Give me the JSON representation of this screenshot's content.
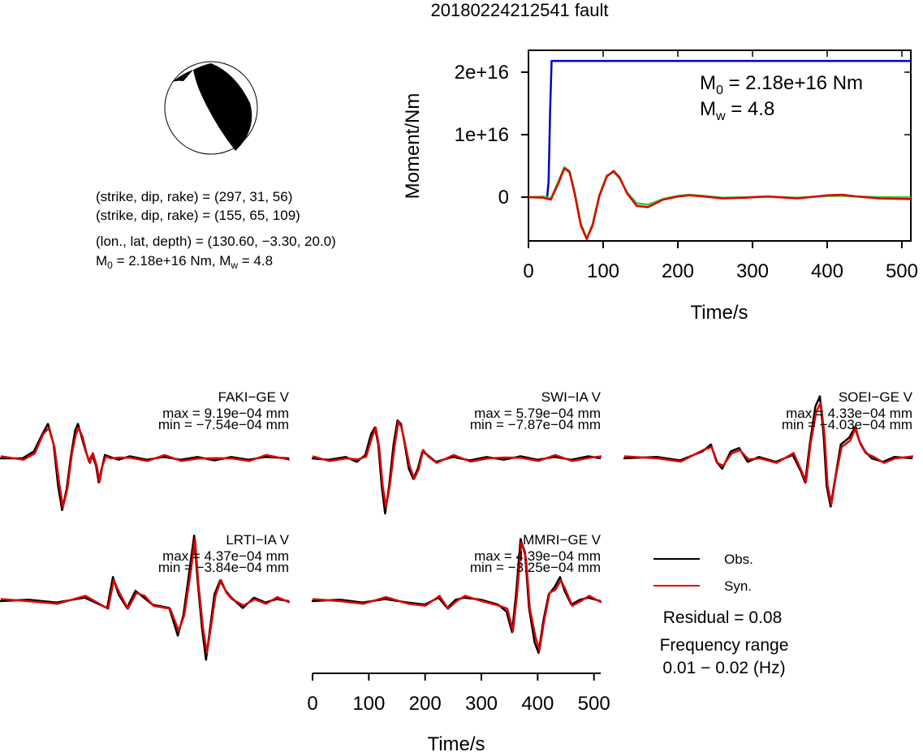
{
  "title": "20180224212541 fault",
  "mechanism": {
    "np1": "(strike, dip, rake) = (297, 31, 56)",
    "np2": "(strike, dip, rake) = (155, 65, 109)",
    "location": "(lon., lat, depth) = (130.60, −3.30, 20.0)",
    "moment_text_prefix": "M",
    "moment_text_sub": "0",
    "moment_text_rest": " = 2.18e+16 Nm, M",
    "moment_text_sub2": "w",
    "moment_text_end": " = 4.8"
  },
  "stf_annot": {
    "m0_label": "M",
    "m0_sub": "0",
    "m0_value": " = 2.18e+16 Nm",
    "mw_label": "M",
    "mw_sub": "w",
    "mw_value": " = 4.8"
  },
  "legend": {
    "obs": "Obs.",
    "syn": "Syn."
  },
  "residual": "Residual = 0.08",
  "freq_title": "Frequency range",
  "freq_value": "0.01 − 0.02 (Hz)",
  "colors": {
    "obs": "#000000",
    "syn": "#e00000",
    "blue": "#0000cc",
    "green": "#33cc33"
  },
  "chart_data": [
    {
      "type": "line",
      "name": "moment-rate-function",
      "xlabel": "Time/s",
      "ylabel": "Moment/Nm",
      "xlim": [
        0,
        512
      ],
      "ylim": [
        -7000000000000000.0,
        2.35e+16
      ],
      "xticks": [
        0,
        100,
        200,
        300,
        400,
        500
      ],
      "yticks": [
        0,
        1e+16,
        2e+16
      ],
      "ytick_labels": [
        "0",
        "1e+16",
        "2e+16"
      ],
      "series": [
        {
          "color": "#0000cc",
          "x": [
            0,
            25,
            27,
            29,
            31,
            512
          ],
          "y": [
            0,
            0,
            2500000000000000.0,
            1.4e+16,
            2.18e+16,
            2.18e+16
          ]
        },
        {
          "color": "#33cc33",
          "x": [
            0,
            20,
            30,
            40,
            48,
            55,
            62,
            70,
            78,
            86,
            95,
            105,
            114,
            122,
            132,
            145,
            160,
            180,
            200,
            215,
            235,
            260,
            290,
            320,
            360,
            400,
            420,
            440,
            470,
            512
          ],
          "y": [
            0,
            100000000000000.0,
            -200000000000000.0,
            2500000000000000.0,
            4800000000000000.0,
            4200000000000000.0,
            800000000000000.0,
            -4200000000000000.0,
            -6600000000000000.0,
            -4200000000000000.0,
            400000000000000.0,
            3500000000000000.0,
            4000000000000000.0,
            3000000000000000.0,
            800000000000000.0,
            -1000000000000000.0,
            -1200000000000000.0,
            -300000000000000.0,
            200000000000000.0,
            400000000000000.0,
            200000000000000.0,
            -100000000000000.0,
            0,
            100000000000000.0,
            -100000000000000.0,
            200000000000000.0,
            200000000000000.0,
            100000000000000.0,
            0,
            0
          ]
        },
        {
          "color": "#e00000",
          "x": [
            0,
            20,
            30,
            40,
            48,
            55,
            62,
            70,
            78,
            86,
            95,
            105,
            114,
            122,
            132,
            145,
            160,
            180,
            200,
            215,
            235,
            260,
            290,
            320,
            360,
            400,
            420,
            440,
            470,
            512
          ],
          "y": [
            0,
            -100000000000000.0,
            -400000000000000.0,
            2200000000000000.0,
            4600000000000000.0,
            4000000000000000.0,
            500000000000000.0,
            -4500000000000000.0,
            -6700000000000000.0,
            -4500000000000000.0,
            200000000000000.0,
            3300000000000000.0,
            4200000000000000.0,
            3200000000000000.0,
            600000000000000.0,
            -1400000000000000.0,
            -1600000000000000.0,
            -400000000000000.0,
            100000000000000.0,
            300000000000000.0,
            100000000000000.0,
            -200000000000000.0,
            -100000000000000.0,
            100000000000000.0,
            -200000000000000.0,
            300000000000000.0,
            400000000000000.0,
            100000000000000.0,
            -200000000000000.0,
            -300000000000000.0
          ]
        }
      ]
    },
    {
      "type": "line",
      "name": "waveforms",
      "xlabel": "Time/s",
      "xlim": [
        0,
        512
      ],
      "xticks": [
        0,
        100,
        200,
        300,
        400,
        500
      ],
      "stations": [
        {
          "label": "FAKI−GE V",
          "max": "max = 9.19e−04 mm",
          "min": "min = −7.54e−04 mm",
          "obs": [
            [
              0,
              0
            ],
            [
              40,
              0
            ],
            [
              60,
              0.1
            ],
            [
              75,
              0.35
            ],
            [
              85,
              0.5
            ],
            [
              95,
              0.2
            ],
            [
              103,
              -0.4
            ],
            [
              110,
              -0.75
            ],
            [
              118,
              -0.45
            ],
            [
              126,
              0.05
            ],
            [
              133,
              0.4
            ],
            [
              138,
              0.5
            ],
            [
              145,
              0.3
            ],
            [
              152,
              0.1
            ],
            [
              158,
              -0.05
            ],
            [
              163,
              0.05
            ],
            [
              170,
              -0.1
            ],
            [
              175,
              -0.35
            ],
            [
              180,
              -0.15
            ],
            [
              186,
              0.05
            ],
            [
              195,
              0.02
            ],
            [
              210,
              -0.02
            ],
            [
              230,
              0.03
            ],
            [
              260,
              -0.02
            ],
            [
              290,
              0.02
            ],
            [
              320,
              -0.02
            ],
            [
              350,
              0.02
            ],
            [
              380,
              -0.03
            ],
            [
              410,
              0.02
            ],
            [
              440,
              -0.02
            ],
            [
              470,
              0.02
            ],
            [
              512,
              0
            ]
          ]
        },
        {
          "label": "SWI−IA V",
          "max": "max = 5.79e−04 mm",
          "min": "min = −7.87e−04 mm",
          "obs": [
            [
              0,
              0
            ],
            [
              30,
              -0.02
            ],
            [
              60,
              0.02
            ],
            [
              80,
              -0.05
            ],
            [
              95,
              0.05
            ],
            [
              105,
              0.35
            ],
            [
              112,
              0.45
            ],
            [
              118,
              0.2
            ],
            [
              124,
              -0.4
            ],
            [
              130,
              -0.8
            ],
            [
              137,
              -0.4
            ],
            [
              145,
              0.2
            ],
            [
              152,
              0.55
            ],
            [
              158,
              0.5
            ],
            [
              165,
              0.2
            ],
            [
              172,
              -0.15
            ],
            [
              180,
              -0.3
            ],
            [
              188,
              -0.15
            ],
            [
              196,
              0.1
            ],
            [
              205,
              0.05
            ],
            [
              220,
              -0.05
            ],
            [
              250,
              0.02
            ],
            [
              280,
              -0.03
            ],
            [
              310,
              0.02
            ],
            [
              340,
              -0.02
            ],
            [
              370,
              0.03
            ],
            [
              400,
              -0.02
            ],
            [
              430,
              0.02
            ],
            [
              460,
              -0.02
            ],
            [
              490,
              0.03
            ],
            [
              512,
              0
            ]
          ]
        },
        {
          "label": "SOEI−GE V",
          "max": "max = 4.33e−04 mm",
          "min": "min = −4.03e−04 mm",
          "obs": [
            [
              0,
              0
            ],
            [
              60,
              0.02
            ],
            [
              100,
              -0.03
            ],
            [
              140,
              0.1
            ],
            [
              155,
              0.2
            ],
            [
              165,
              -0.05
            ],
            [
              175,
              -0.15
            ],
            [
              190,
              0.1
            ],
            [
              205,
              0.15
            ],
            [
              220,
              -0.05
            ],
            [
              240,
              0.02
            ],
            [
              270,
              -0.05
            ],
            [
              300,
              0.05
            ],
            [
              315,
              -0.2
            ],
            [
              322,
              -0.35
            ],
            [
              330,
              0.2
            ],
            [
              340,
              0.75
            ],
            [
              348,
              0.9
            ],
            [
              355,
              0.3
            ],
            [
              360,
              -0.4
            ],
            [
              367,
              -0.7
            ],
            [
              375,
              -0.3
            ],
            [
              385,
              0.2
            ],
            [
              400,
              0.3
            ],
            [
              410,
              0.45
            ],
            [
              418,
              0.25
            ],
            [
              428,
              0.1
            ],
            [
              440,
              0
            ],
            [
              460,
              -0.05
            ],
            [
              480,
              0.02
            ],
            [
              512,
              0
            ]
          ]
        },
        {
          "label": "LRTI−IA V",
          "max": "max = 4.37e−04 mm",
          "min": "min = −3.84e−04 mm",
          "obs": [
            [
              0,
              0
            ],
            [
              50,
              0.02
            ],
            [
              100,
              -0.02
            ],
            [
              150,
              0.05
            ],
            [
              190,
              -0.1
            ],
            [
              200,
              0.35
            ],
            [
              210,
              0.1
            ],
            [
              225,
              -0.1
            ],
            [
              240,
              0.15
            ],
            [
              255,
              0.05
            ],
            [
              270,
              -0.05
            ],
            [
              300,
              -0.1
            ],
            [
              315,
              -0.5
            ],
            [
              325,
              -0.2
            ],
            [
              335,
              0.4
            ],
            [
              344,
              0.95
            ],
            [
              350,
              0.3
            ],
            [
              358,
              -0.4
            ],
            [
              365,
              -0.85
            ],
            [
              372,
              -0.4
            ],
            [
              380,
              0.1
            ],
            [
              390,
              0.3
            ],
            [
              400,
              0.15
            ],
            [
              410,
              0.05
            ],
            [
              430,
              -0.1
            ],
            [
              450,
              0.05
            ],
            [
              470,
              -0.02
            ],
            [
              490,
              0.03
            ],
            [
              512,
              0
            ]
          ]
        },
        {
          "label": "MMRI−GE V",
          "max": "max = 4.39e−04 mm",
          "min": "min = −3.25e−04 mm",
          "obs": [
            [
              0,
              0
            ],
            [
              50,
              0.02
            ],
            [
              90,
              -0.02
            ],
            [
              130,
              0.03
            ],
            [
              170,
              -0.02
            ],
            [
              200,
              -0.05
            ],
            [
              225,
              0.05
            ],
            [
              240,
              -0.1
            ],
            [
              255,
              0.02
            ],
            [
              270,
              0.05
            ],
            [
              300,
              0.02
            ],
            [
              330,
              -0.05
            ],
            [
              345,
              -0.15
            ],
            [
              355,
              -0.45
            ],
            [
              362,
              0.1
            ],
            [
              370,
              0.9
            ],
            [
              378,
              0.7
            ],
            [
              385,
              -0.1
            ],
            [
              395,
              -0.6
            ],
            [
              402,
              -0.75
            ],
            [
              410,
              -0.3
            ],
            [
              420,
              0.1
            ],
            [
              430,
              0.2
            ],
            [
              440,
              0.35
            ],
            [
              448,
              0.15
            ],
            [
              460,
              -0.05
            ],
            [
              475,
              0.02
            ],
            [
              490,
              0.05
            ],
            [
              512,
              0
            ]
          ]
        }
      ]
    }
  ]
}
